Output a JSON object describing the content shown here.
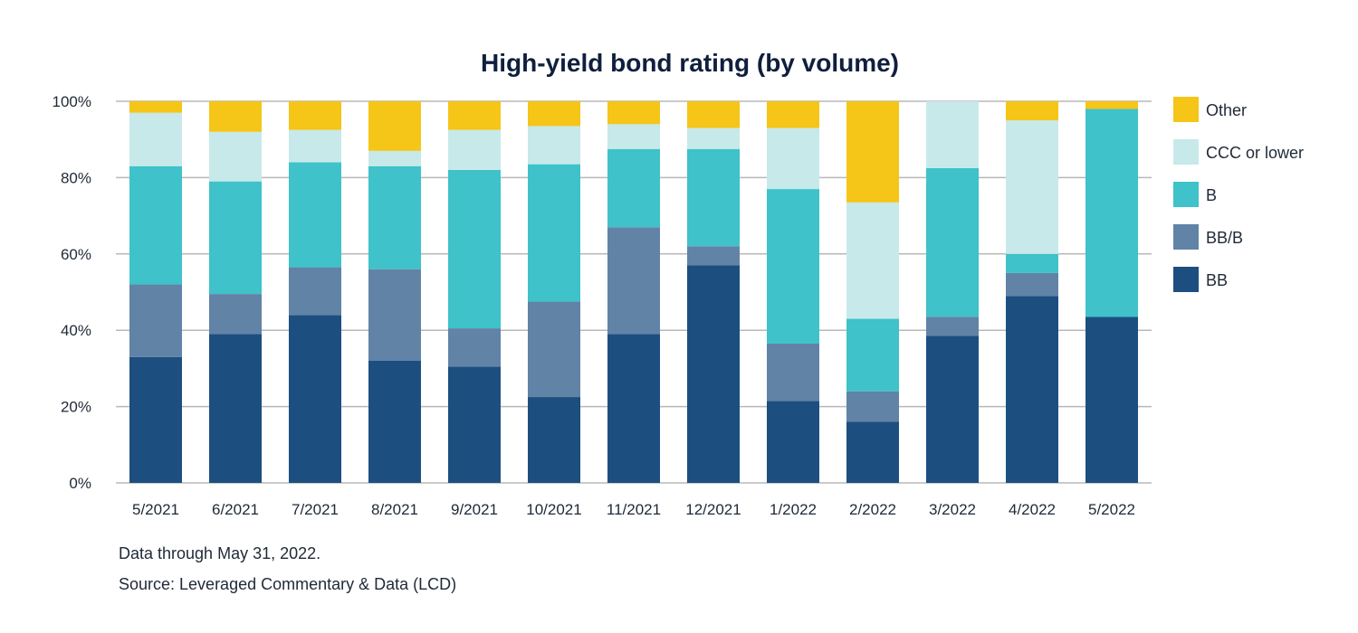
{
  "chart_data": {
    "type": "bar",
    "stacked": true,
    "title": "High-yield bond rating (by volume)",
    "xlabel": "",
    "ylabel": "",
    "ylim": [
      0,
      100
    ],
    "y_ticks": [
      "0%",
      "20%",
      "40%",
      "60%",
      "80%",
      "100%"
    ],
    "y_tick_values": [
      0,
      20,
      40,
      60,
      80,
      100
    ],
    "grid": true,
    "legend_position": "right",
    "categories": [
      "5/2021",
      "6/2021",
      "7/2021",
      "8/2021",
      "9/2021",
      "10/2021",
      "11/2021",
      "12/2021",
      "1/2022",
      "2/2022",
      "3/2022",
      "4/2022",
      "5/2022"
    ],
    "series": [
      {
        "name": "BB",
        "color": "#1c4f80",
        "values": [
          33,
          39,
          44,
          32,
          30.5,
          22.5,
          39,
          57,
          21.5,
          16,
          38.5,
          49,
          43.5
        ]
      },
      {
        "name": "BB/B",
        "color": "#6183a6",
        "values": [
          19,
          10.5,
          12.5,
          24,
          10,
          25,
          28,
          5,
          15,
          8,
          5,
          6,
          0
        ]
      },
      {
        "name": "B",
        "color": "#3fc2c9",
        "values": [
          31,
          29.5,
          27.5,
          27,
          41.5,
          36,
          20.5,
          25.5,
          40.5,
          19,
          39,
          5,
          54.5
        ]
      },
      {
        "name": "CCC or lower",
        "color": "#c7e9ea",
        "values": [
          14,
          13,
          8.5,
          4,
          10.5,
          10,
          6.5,
          5.5,
          16,
          30.5,
          17.5,
          35,
          0
        ]
      },
      {
        "name": "Other",
        "color": "#f5c518",
        "values": [
          3,
          8,
          7.5,
          13,
          7.5,
          6.5,
          6,
          7,
          7,
          26.5,
          0,
          5,
          2
        ]
      }
    ],
    "legend_order": [
      "Other",
      "CCC or lower",
      "B",
      "BB/B",
      "BB"
    ]
  },
  "footnotes": {
    "note": "Data through May 31, 2022.",
    "source": "Source: Leveraged Commentary & Data (LCD)"
  }
}
